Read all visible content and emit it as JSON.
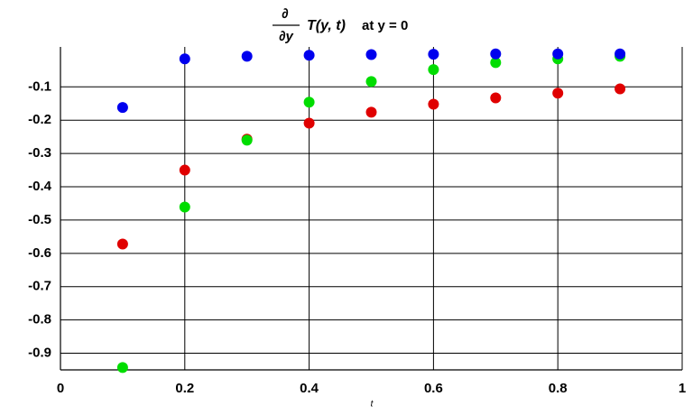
{
  "chart_data": {
    "type": "scatter",
    "title": {
      "numerator": "∂",
      "denominator": "∂y",
      "expression": "T(y, t)",
      "suffix": "at y = 0"
    },
    "x_label": "t",
    "xlim": [
      0,
      1
    ],
    "ylim": [
      -0.95,
      0.02
    ],
    "xticks": [
      0,
      0.2,
      0.4,
      0.6,
      0.8,
      1
    ],
    "yticks": [
      -0.1,
      -0.2,
      -0.3,
      -0.4,
      -0.5,
      -0.6,
      -0.7,
      -0.8,
      -0.9
    ],
    "grid": true,
    "series": [
      {
        "color": "#e00000",
        "x": [
          0.1,
          0.2,
          0.3,
          0.4,
          0.5,
          0.6,
          0.7,
          0.8,
          0.9
        ],
        "values": [
          -0.572,
          -0.35,
          -0.257,
          -0.209,
          -0.176,
          -0.152,
          -0.133,
          -0.119,
          -0.106
        ]
      },
      {
        "color": "#00dd00",
        "x": [
          0.1,
          0.2,
          0.3,
          0.4,
          0.5,
          0.6,
          0.7,
          0.8,
          0.9
        ],
        "values": [
          -0.943,
          -0.461,
          -0.26,
          -0.146,
          -0.084,
          -0.048,
          -0.027,
          -0.016,
          -0.008
        ]
      },
      {
        "color": "#0000ee",
        "x": [
          0.1,
          0.2,
          0.3,
          0.4,
          0.5,
          0.6,
          0.7,
          0.8,
          0.9
        ],
        "values": [
          -0.162,
          -0.016,
          -0.008,
          -0.005,
          -0.003,
          -0.002,
          -0.001,
          -0.001,
          -0.001
        ]
      }
    ]
  }
}
